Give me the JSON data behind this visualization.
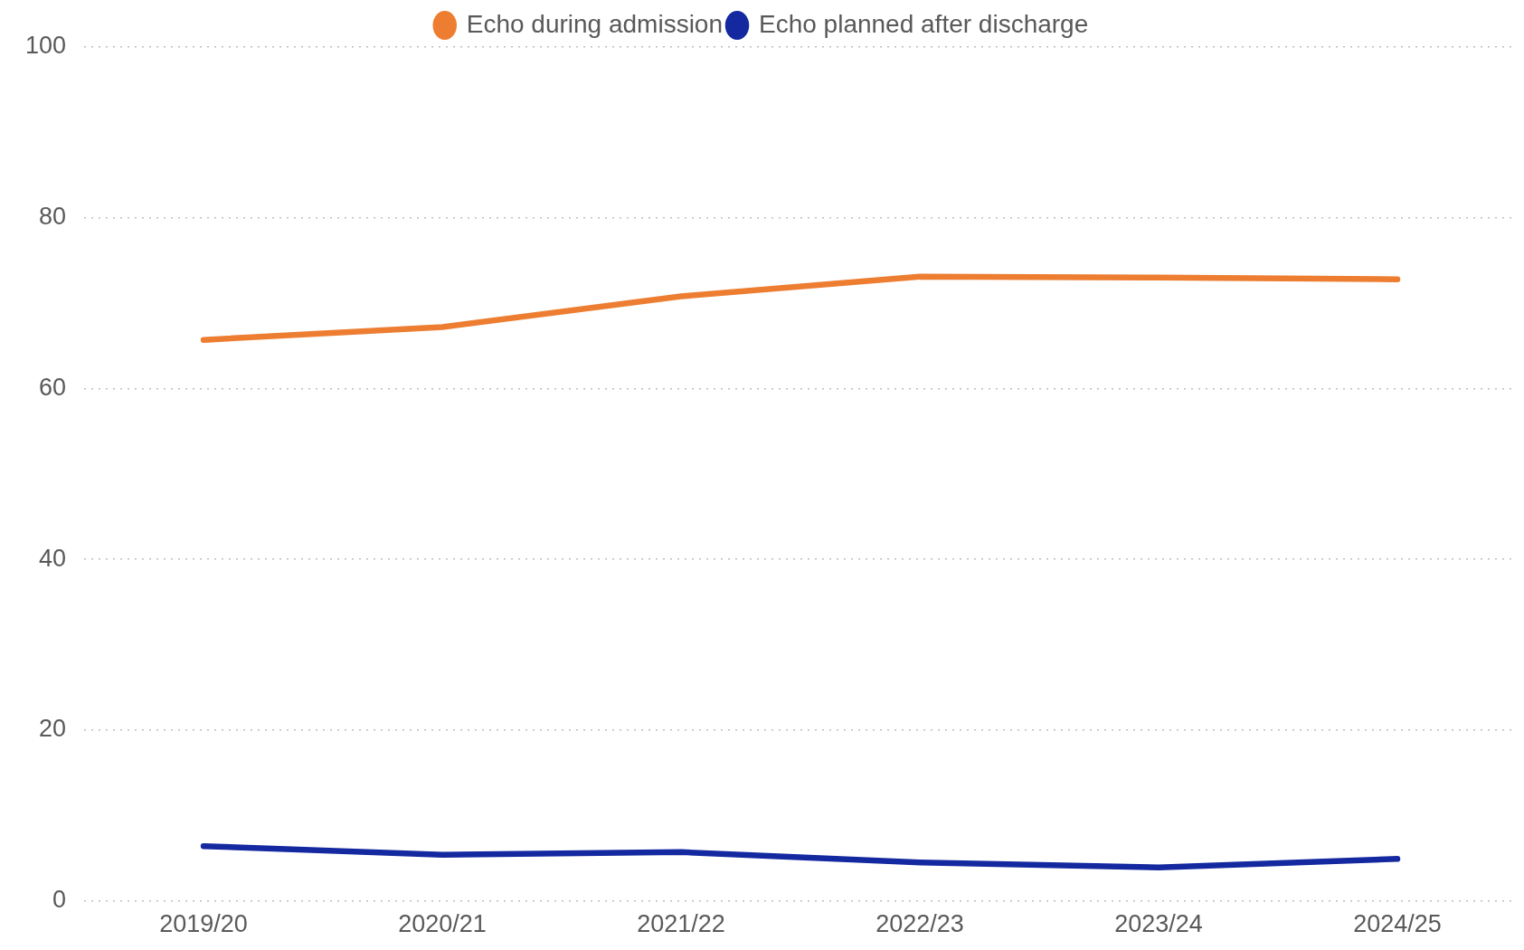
{
  "chart_data": {
    "type": "line",
    "categories": [
      "2019/20",
      "2020/21",
      "2021/22",
      "2022/23",
      "2023/24",
      "2024/25"
    ],
    "series": [
      {
        "name": "Echo during admission",
        "color": "#ed7d31",
        "values": [
          65.7,
          67.2,
          70.8,
          73.1,
          73.0,
          72.8
        ]
      },
      {
        "name": "Echo planned after discharge",
        "color": "#1428a0",
        "values": [
          6.4,
          5.4,
          5.7,
          4.5,
          3.9,
          4.9
        ]
      }
    ],
    "ylim": [
      0,
      100
    ],
    "yticks": [
      0,
      20,
      40,
      60,
      80,
      100
    ],
    "grid": "y",
    "legend": "top",
    "marker": "none",
    "line_style": "solid"
  }
}
